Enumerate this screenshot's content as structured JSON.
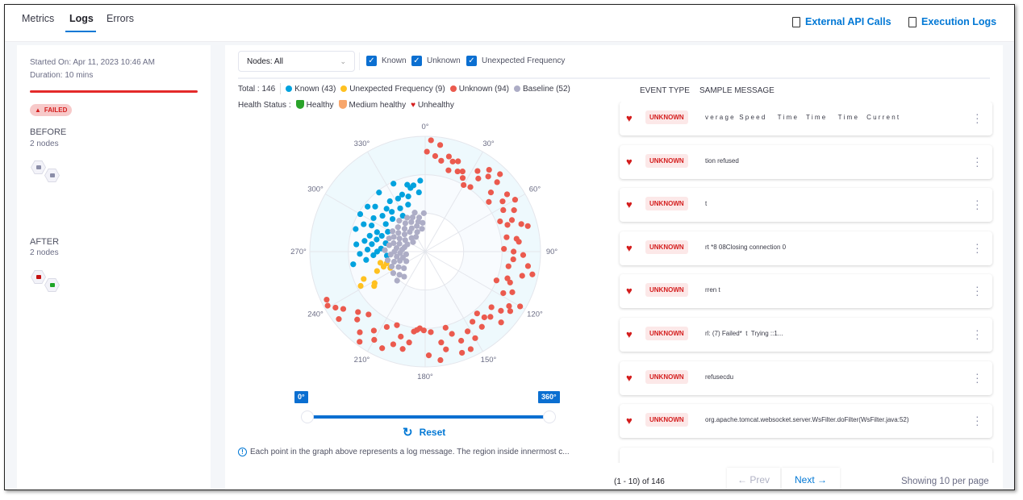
{
  "tabs": [
    {
      "label": "Metrics"
    },
    {
      "label": "Logs",
      "active": true
    },
    {
      "label": "Errors"
    }
  ],
  "header_links": {
    "external_api": "External API Calls",
    "execution_logs": "Execution Logs"
  },
  "left_panel": {
    "started_on": "Started On: Apr 11, 2023 10:46 AM",
    "duration": "Duration: 10 mins",
    "status": "FAILED",
    "before": {
      "title": "BEFORE",
      "subtitle": "2 nodes",
      "node_colors": [
        "#8b8ea8",
        "#8b8ea8"
      ]
    },
    "after": {
      "title": "AFTER",
      "subtitle": "2 nodes",
      "node_colors": [
        "#c41010",
        "#1ea526"
      ]
    }
  },
  "filters": {
    "nodes_select": "Nodes: All",
    "checkboxes": [
      {
        "label": "Known",
        "checked": true
      },
      {
        "label": "Unknown",
        "checked": true
      },
      {
        "label": "Unexpected Frequency",
        "checked": true
      }
    ]
  },
  "legend": {
    "total": "Total : 146",
    "items": [
      {
        "label": "Known (43)",
        "color": "#00a2de"
      },
      {
        "label": "Unexpected Frequency (9)",
        "color": "#ffc120"
      },
      {
        "label": "Unknown (94)",
        "color": "#eb5a4e"
      },
      {
        "label": "Baseline (52)",
        "color": "#adadc6"
      }
    ]
  },
  "health_status": {
    "label": "Health Status :",
    "items": [
      {
        "label": "Healthy",
        "color": "#2aa32a"
      },
      {
        "label": "Medium healthy",
        "color": "#f8a66b"
      },
      {
        "label": "Unhealthy",
        "color": "#d41d1d"
      }
    ]
  },
  "chart_data": {
    "type": "scatter",
    "coordinate_system": "polar",
    "angle_ticks": [
      "0°",
      "30°",
      "60°",
      "90°",
      "120°",
      "150°",
      "180°",
      "210°",
      "240°",
      "270°",
      "300°",
      "330°"
    ],
    "radius_rings": [
      1,
      2,
      3
    ],
    "series": [
      {
        "name": "Unknown",
        "color": "#eb5a4e",
        "points": [
          [
            3,
            2.9
          ],
          [
            8,
            2.8
          ],
          [
            1,
            2.6
          ],
          [
            6,
            2.5
          ],
          [
            10,
            2.4
          ],
          [
            14,
            2.55
          ],
          [
            17,
            2.45
          ],
          [
            20,
            2.5
          ],
          [
            16,
            2.2
          ],
          [
            22,
            2.25
          ],
          [
            25,
            2.3
          ],
          [
            27,
            2.15
          ],
          [
            30,
            2.0
          ],
          [
            33,
            2.5
          ],
          [
            36,
            2.35
          ],
          [
            38,
            2.7
          ],
          [
            40,
            2.55
          ],
          [
            44,
            2.8
          ],
          [
            46,
            2.6
          ],
          [
            48,
            2.3
          ],
          [
            52,
            2.1
          ],
          [
            55,
            2.6
          ],
          [
            57,
            2.4
          ],
          [
            60,
            2.7
          ],
          [
            62,
            2.3
          ],
          [
            65,
            2.55
          ],
          [
            68,
            2.1
          ],
          [
            70,
            2.4
          ],
          [
            72,
            2.25
          ],
          [
            76,
            2.75
          ],
          [
            80,
            2.15
          ],
          [
            82,
            2.4
          ],
          [
            84,
            2.45
          ],
          [
            88,
            2.05
          ],
          [
            90,
            2.3
          ],
          [
            92,
            2.55
          ],
          [
            95,
            2.3
          ],
          [
            98,
            2.7
          ],
          [
            100,
            2.2
          ],
          [
            102,
            2.85
          ],
          [
            104,
            2.6
          ],
          [
            108,
            2.25
          ],
          [
            110,
            2.35
          ],
          [
            112,
            2.0
          ],
          [
            115,
            2.5
          ],
          [
            118,
            2.3
          ],
          [
            120,
            2.85
          ],
          [
            123,
            2.6
          ],
          [
            125,
            2.7
          ],
          [
            128,
            2.5
          ],
          [
            130,
            2.25
          ],
          [
            133,
            2.7
          ],
          [
            138,
            2.3
          ],
          [
            140,
            2.1
          ],
          [
            143,
            2.45
          ],
          [
            146,
            2.2
          ],
          [
            150,
            2.6
          ],
          [
            152,
            2.35
          ],
          [
            155,
            2.8
          ],
          [
            158,
            2.5
          ],
          [
            162,
            2.25
          ],
          [
            165,
            2.05
          ],
          [
            168,
            2.6
          ],
          [
            170,
            2.4
          ],
          [
            172,
            2.85
          ],
          [
            176,
            2.1
          ],
          [
            178,
            2.7
          ],
          [
            181,
            2.05
          ],
          [
            184,
            2.0
          ],
          [
            186,
            2.05
          ],
          [
            188,
            2.1
          ],
          [
            190,
            2.4
          ],
          [
            193,
            2.6
          ],
          [
            196,
            2.3
          ],
          [
            199,
            2.55
          ],
          [
            201,
            2.05
          ],
          [
            204,
            2.75
          ],
          [
            207,
            2.2
          ],
          [
            210,
            2.65
          ],
          [
            213,
            2.45
          ],
          [
            216,
            2.9
          ],
          [
            219,
            2.7
          ],
          [
            222,
            2.2
          ],
          [
            225,
            2.5
          ],
          [
            228,
            2.35
          ],
          [
            232,
            2.85
          ],
          [
            235,
            2.6
          ],
          [
            238,
            2.75
          ],
          [
            241,
            2.9
          ],
          [
            244,
            2.85
          ],
          [
            35,
            2.05
          ],
          [
            74,
            2.6
          ],
          [
            135,
            2.4
          ],
          [
            160,
            2.8
          ]
        ]
      },
      {
        "name": "Known",
        "color": "#00a2de",
        "points": [
          [
            356,
            1.85
          ],
          [
            354,
            1.55
          ],
          [
            350,
            1.75
          ],
          [
            347,
            1.7
          ],
          [
            345,
            1.8
          ],
          [
            343,
            1.5
          ],
          [
            340,
            1.3
          ],
          [
            338,
            1.6
          ],
          [
            335,
            1.95
          ],
          [
            333,
            1.55
          ],
          [
            330,
            1.3
          ],
          [
            328,
            1.1
          ],
          [
            325,
            1.6
          ],
          [
            322,
            1.95
          ],
          [
            320,
            1.35
          ],
          [
            318,
            1.5
          ],
          [
            315,
            1.2
          ],
          [
            312,
            1.75
          ],
          [
            310,
            1.45
          ],
          [
            308,
            1.9
          ],
          [
            305,
            1.25
          ],
          [
            303,
            1.6
          ],
          [
            300,
            1.95
          ],
          [
            298,
            1.1
          ],
          [
            296,
            1.55
          ],
          [
            294,
            1.75
          ],
          [
            292,
            1.35
          ],
          [
            290,
            1.2
          ],
          [
            288,
            1.9
          ],
          [
            286,
            1.5
          ],
          [
            284,
            1.3
          ],
          [
            282,
            1.05
          ],
          [
            280,
            1.6
          ],
          [
            278,
            1.4
          ],
          [
            276,
            1.8
          ],
          [
            274,
            1.15
          ],
          [
            272,
            1.5
          ],
          [
            270,
            1.25
          ],
          [
            268,
            1.7
          ],
          [
            266,
            1.35
          ],
          [
            264,
            1.0
          ],
          [
            262,
            1.55
          ],
          [
            260,
            1.9
          ]
        ]
      },
      {
        "name": "Unexpected Frequency",
        "color": "#ffc120",
        "points": [
          [
            242,
            1.9
          ],
          [
            246,
            1.75
          ],
          [
            236,
            1.6
          ],
          [
            238,
            1.55
          ],
          [
            248,
            1.35
          ],
          [
            250,
            1.15
          ],
          [
            253,
            1.05
          ],
          [
            245,
            1.0
          ],
          [
            256,
            1.2
          ]
        ]
      },
      {
        "name": "Baseline",
        "color": "#adadc6",
        "points": [
          [
            358,
            1.0
          ],
          [
            355,
            0.75
          ],
          [
            352,
            0.6
          ],
          [
            350,
            0.9
          ],
          [
            347,
            0.8
          ],
          [
            345,
            1.05
          ],
          [
            342,
            0.7
          ],
          [
            340,
            0.95
          ],
          [
            338,
            0.55
          ],
          [
            335,
            0.85
          ],
          [
            332,
            1.0
          ],
          [
            330,
            0.7
          ],
          [
            328,
            0.45
          ],
          [
            325,
            0.9
          ],
          [
            322,
            0.65
          ],
          [
            320,
            1.05
          ],
          [
            318,
            0.8
          ],
          [
            315,
            0.5
          ],
          [
            312,
            0.95
          ],
          [
            310,
            0.7
          ],
          [
            308,
            0.4
          ],
          [
            305,
            0.85
          ],
          [
            302,
            1.0
          ],
          [
            300,
            0.6
          ],
          [
            297,
            0.75
          ],
          [
            295,
            0.9
          ],
          [
            292,
            0.5
          ],
          [
            290,
            1.0
          ],
          [
            287,
            0.7
          ],
          [
            285,
            0.85
          ],
          [
            282,
            0.55
          ],
          [
            280,
            0.95
          ],
          [
            277,
            0.75
          ],
          [
            275,
            0.6
          ],
          [
            272,
            1.05
          ],
          [
            270,
            0.8
          ],
          [
            267,
            0.65
          ],
          [
            265,
            0.9
          ],
          [
            262,
            0.5
          ],
          [
            260,
            0.75
          ],
          [
            257,
            1.0
          ],
          [
            255,
            0.6
          ],
          [
            252,
            0.85
          ],
          [
            250,
            0.7
          ],
          [
            246,
            0.95
          ],
          [
            243,
            0.55
          ],
          [
            240,
            0.8
          ],
          [
            236,
            1.0
          ],
          [
            232,
            0.7
          ],
          [
            228,
            0.9
          ],
          [
            224,
            1.05
          ],
          [
            220,
            0.85
          ]
        ]
      }
    ]
  },
  "angle_range": {
    "min_label": "0°",
    "max_label": "360°",
    "min": 0,
    "max": 360
  },
  "reset_label": "Reset",
  "info_text": "Each point in the graph above represents a log message. The region inside innermost c...",
  "table": {
    "columns": [
      "EVENT TYPE",
      "SAMPLE MESSAGE"
    ],
    "rows": [
      {
        "type": "UNKNOWN",
        "message": "v e r a g e   S p e e d       T i m e     T i m e       T i m e     C u r r e n t"
      },
      {
        "type": "UNKNOWN",
        "message": "tion refused"
      },
      {
        "type": "UNKNOWN",
        "message": "t"
      },
      {
        "type": "UNKNOWN",
        "message": "rt *8 08Closing connection 0"
      },
      {
        "type": "UNKNOWN",
        "message": "rren t"
      },
      {
        "type": "UNKNOWN",
        "message": "rl: (7) Failed*  t  Trying ::1..."
      },
      {
        "type": "UNKNOWN",
        "message": "refusecdu"
      },
      {
        "type": "UNKNOWN",
        "message": "org.apache.tomcat.websocket.server.WsFilter.doFilter(WsFilter.java:52)"
      }
    ]
  },
  "pagination": {
    "range": "(1 - 10) of 146",
    "prev": "← Prev",
    "next": "Next →",
    "per_page": "Showing 10 per page"
  }
}
